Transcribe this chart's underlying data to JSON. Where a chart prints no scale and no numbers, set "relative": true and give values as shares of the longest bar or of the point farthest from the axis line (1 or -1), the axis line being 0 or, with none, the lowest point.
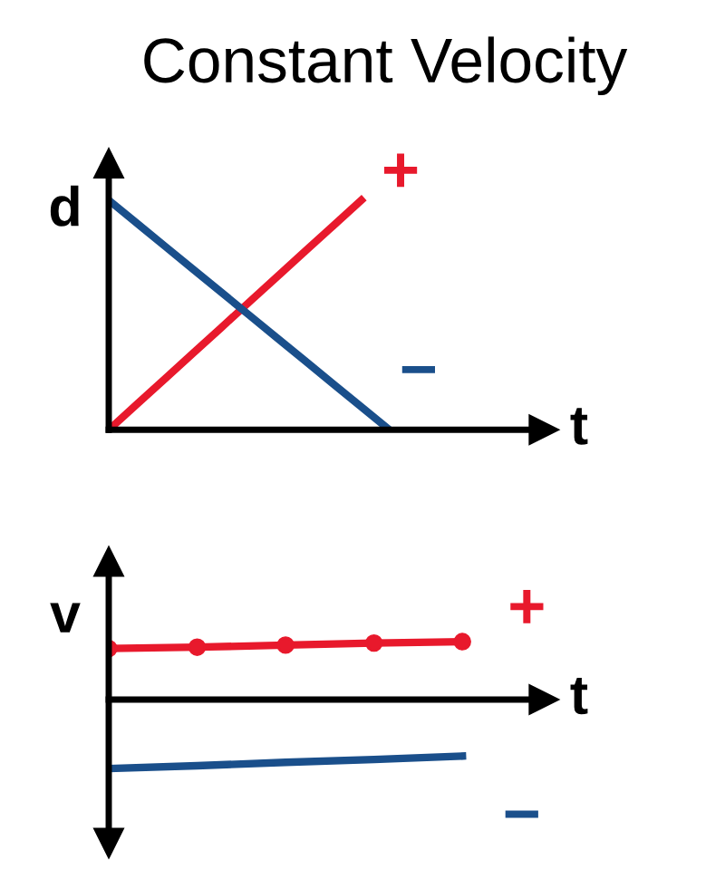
{
  "chart_data": [
    {
      "type": "line",
      "title": "Constant Velocity",
      "xlabel": "t",
      "ylabel": "d",
      "relative": true,
      "tick_labels": false,
      "legend": false,
      "categories": [
        null,
        null,
        null,
        null,
        null,
        null,
        null,
        null,
        null,
        null,
        null
      ],
      "series": [
        {
          "name": "+",
          "color": "#e8192c",
          "values": [
            0,
            0.111,
            0.222,
            0.333,
            0.444,
            0.556,
            0.667,
            0.778,
            0.889,
            1,
            null
          ]
        },
        {
          "name": "−",
          "color": "#1a4f8b",
          "values": [
            1,
            0.9,
            0.8,
            0.7,
            0.6,
            0.5,
            0.4,
            0.3,
            0.2,
            0.1,
            0
          ]
        }
      ]
    },
    {
      "type": "line",
      "xlabel": "t",
      "ylabel": "v",
      "relative": true,
      "tick_labels": false,
      "legend": false,
      "categories": [
        null,
        null,
        null,
        null,
        null
      ],
      "series": [
        {
          "name": "+",
          "color": "#e8192c",
          "marker": "circle",
          "values": [
            0.74,
            0.76,
            0.79,
            0.82,
            0.84
          ]
        },
        {
          "name": "−",
          "color": "#1a4f8b",
          "values": [
            -1,
            -0.96,
            -0.91,
            -0.87,
            -0.82
          ]
        }
      ]
    }
  ]
}
